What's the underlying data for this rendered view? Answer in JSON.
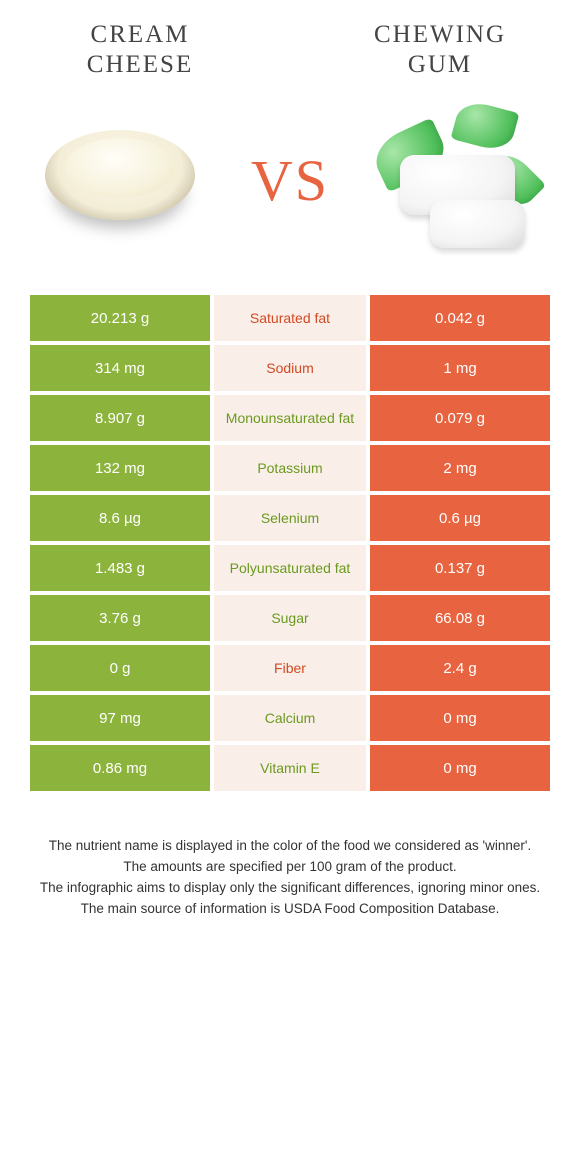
{
  "titles": {
    "left_l1": "CREAM",
    "left_l2": "CHEESE",
    "right_l1": "CHEWING",
    "right_l2": "GUM"
  },
  "vs": "VS",
  "colors": {
    "green": "#8cb43c",
    "orange": "#e8633f",
    "mid_bg": "#faeee8",
    "mid_green_text": "#6a9a1f",
    "mid_orange_text": "#d14a24"
  },
  "rows": [
    {
      "left": "20.213 g",
      "label": "Saturated fat",
      "right": "0.042 g",
      "winner": "orange"
    },
    {
      "left": "314 mg",
      "label": "Sodium",
      "right": "1 mg",
      "winner": "orange"
    },
    {
      "left": "8.907 g",
      "label": "Monounsaturated fat",
      "right": "0.079 g",
      "winner": "green"
    },
    {
      "left": "132 mg",
      "label": "Potassium",
      "right": "2 mg",
      "winner": "green"
    },
    {
      "left": "8.6 µg",
      "label": "Selenium",
      "right": "0.6 µg",
      "winner": "green"
    },
    {
      "left": "1.483 g",
      "label": "Polyunsaturated fat",
      "right": "0.137 g",
      "winner": "green"
    },
    {
      "left": "3.76 g",
      "label": "Sugar",
      "right": "66.08 g",
      "winner": "green"
    },
    {
      "left": "0 g",
      "label": "Fiber",
      "right": "2.4 g",
      "winner": "orange"
    },
    {
      "left": "97 mg",
      "label": "Calcium",
      "right": "0 mg",
      "winner": "green"
    },
    {
      "left": "0.86 mg",
      "label": "Vitamin E",
      "right": "0 mg",
      "winner": "green"
    }
  ],
  "footer": {
    "l1": "The nutrient name is displayed in the color of the food we considered as 'winner'.",
    "l2": "The amounts are specified per 100 gram of the product.",
    "l3": "The infographic aims to display only the significant differences, ignoring minor ones.",
    "l4": "The main source of information is USDA Food Composition Database."
  }
}
